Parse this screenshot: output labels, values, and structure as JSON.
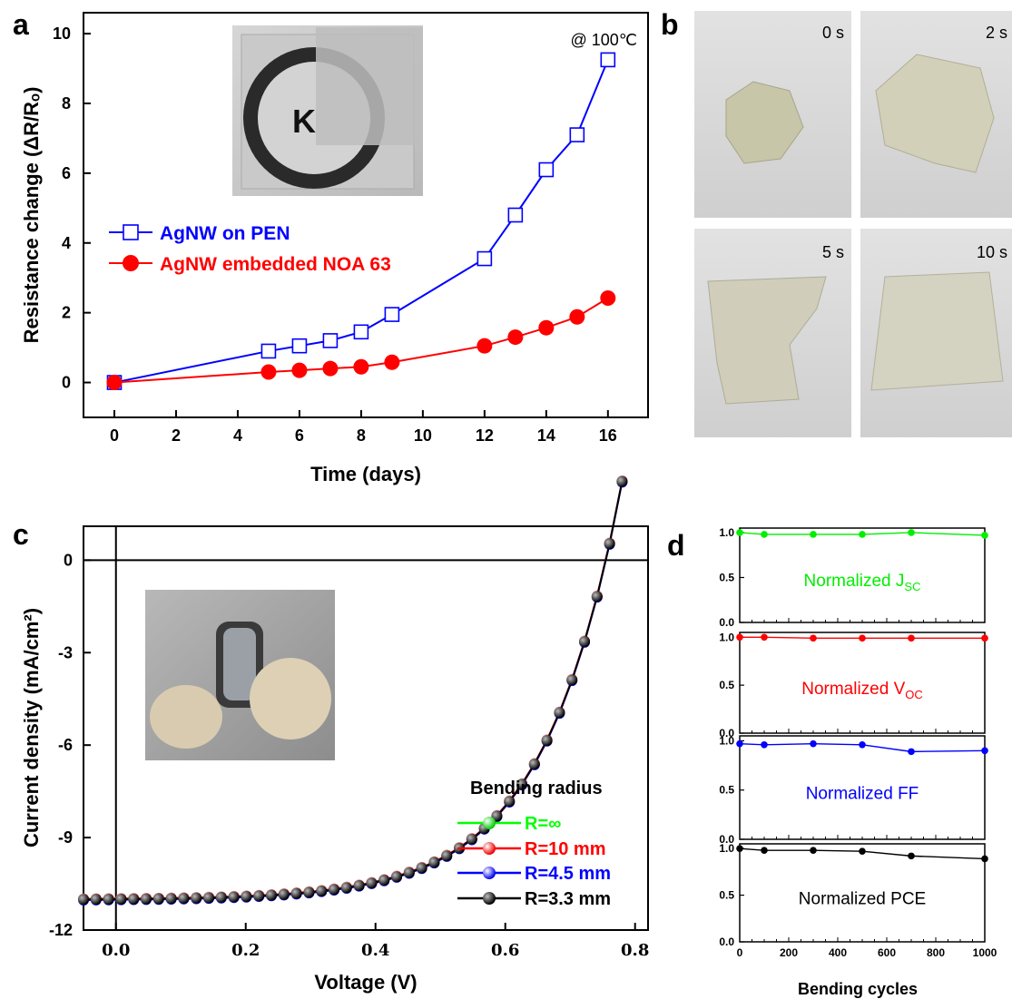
{
  "panels": {
    "a": {
      "label": "a",
      "annotation": "@ 100℃",
      "inset_text": "K",
      "chart_data": {
        "type": "line",
        "xlabel": "Time (days)",
        "ylabel": "Resistance change (ΔR/Rₒ)",
        "xlim": [
          -1,
          17.3
        ],
        "ylim": [
          -1,
          10.6
        ],
        "xticks": [
          0,
          2,
          4,
          6,
          8,
          10,
          12,
          14,
          16
        ],
        "yticks": [
          0,
          2,
          4,
          6,
          8,
          10
        ],
        "legend_position": "middle-left",
        "series": [
          {
            "name": "AgNW on PEN",
            "color": "#0000ff",
            "marker": "open-square",
            "x": [
              0,
              5,
              6,
              7,
              8,
              9,
              12,
              13,
              14,
              15,
              16
            ],
            "y": [
              0,
              0.9,
              1.05,
              1.2,
              1.45,
              1.95,
              3.55,
              4.8,
              6.1,
              7.1,
              9.25
            ]
          },
          {
            "name": "AgNW embedded NOA 63",
            "color": "#ff0000",
            "marker": "filled-circle",
            "x": [
              0,
              5,
              6,
              7,
              8,
              9,
              12,
              13,
              14,
              15,
              16
            ],
            "y": [
              0,
              0.3,
              0.35,
              0.4,
              0.45,
              0.58,
              1.05,
              1.3,
              1.57,
              1.88,
              2.42
            ]
          }
        ]
      }
    },
    "b": {
      "label": "b",
      "photos": [
        {
          "label": "0 s"
        },
        {
          "label": "2 s"
        },
        {
          "label": "5 s"
        },
        {
          "label": "10 s"
        }
      ]
    },
    "c": {
      "label": "c",
      "chart_data": {
        "type": "line",
        "xlabel": "Voltage (V)",
        "ylabel": "Current density (mA/cm²)",
        "xlim": [
          -0.05,
          0.82
        ],
        "ylim": [
          -12,
          1.1
        ],
        "xticks": [
          0.0,
          0.2,
          0.4,
          0.6,
          0.8
        ],
        "yticks": [
          0,
          -3,
          -6,
          -9,
          -12
        ],
        "legend_title": "Bending radius",
        "legend_position": "bottom-right",
        "series": [
          {
            "name": "R=∞",
            "color": "#00ff00"
          },
          {
            "name": "R=10 mm",
            "color": "#ff0000"
          },
          {
            "name": "R=4.5 mm",
            "color": "#0000ff"
          },
          {
            "name": "R=3.3 mm",
            "color": "#000000"
          }
        ],
        "curve": {
          "jsc": 11.0,
          "voc": 0.755,
          "n_points": 44,
          "x_start": -0.05,
          "x_end": 0.78
        }
      }
    },
    "d": {
      "label": "d",
      "chart_data": {
        "type": "line",
        "xlabel": "Bending cycles",
        "xlim": [
          0,
          1000
        ],
        "xticks": [
          0,
          200,
          400,
          600,
          800,
          1000
        ],
        "ylim": [
          0,
          1.05
        ],
        "yticks": [
          0.0,
          0.5,
          1.0
        ],
        "x": [
          0,
          100,
          300,
          500,
          700,
          1000
        ],
        "subplots": [
          {
            "name": "Normalized J",
            "sub": "SC",
            "color": "#00ee00",
            "y": [
              1.0,
              0.98,
              0.98,
              0.98,
              1.0,
              0.97
            ]
          },
          {
            "name": "Normalized V",
            "sub": "OC",
            "color": "#ff0000",
            "y": [
              1.0,
              1.0,
              0.99,
              0.99,
              0.99,
              0.99
            ]
          },
          {
            "name": "Normalized FF",
            "sub": "",
            "color": "#0000ff",
            "y": [
              0.97,
              0.96,
              0.97,
              0.96,
              0.89,
              0.9
            ]
          },
          {
            "name": "Normalized PCE",
            "sub": "",
            "color": "#000000",
            "y": [
              1.0,
              0.98,
              0.98,
              0.97,
              0.92,
              0.89
            ]
          }
        ]
      }
    }
  }
}
